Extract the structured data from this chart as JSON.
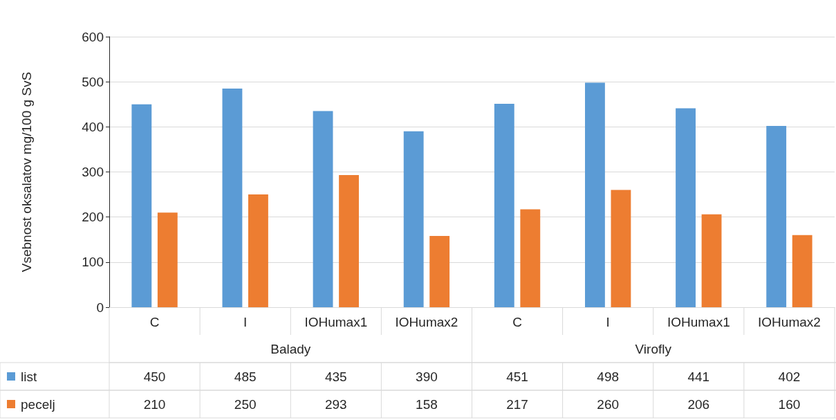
{
  "chart_data": {
    "type": "bar",
    "ylabel": "Vsebnost oksalatov mg/100 g SvS",
    "categories": [
      "C",
      "I",
      "IOHumax1",
      "IOHumax2",
      "C",
      "I",
      "IOHumax1",
      "IOHumax2"
    ],
    "annotations": [
      "Balady",
      "Virofly"
    ],
    "series": [
      {
        "name": "list",
        "color": "#5b9bd5",
        "values": [
          450,
          485,
          435,
          390,
          451,
          498,
          441,
          402
        ]
      },
      {
        "name": "pecelj",
        "color": "#ed7d31",
        "values": [
          210,
          250,
          293,
          158,
          217,
          260,
          206,
          160
        ]
      }
    ],
    "ylim": [
      0,
      600
    ],
    "yticks": [
      0,
      100,
      200,
      300,
      400,
      500,
      600
    ],
    "grid": "y",
    "legend": "bottom",
    "data_labels": true
  }
}
